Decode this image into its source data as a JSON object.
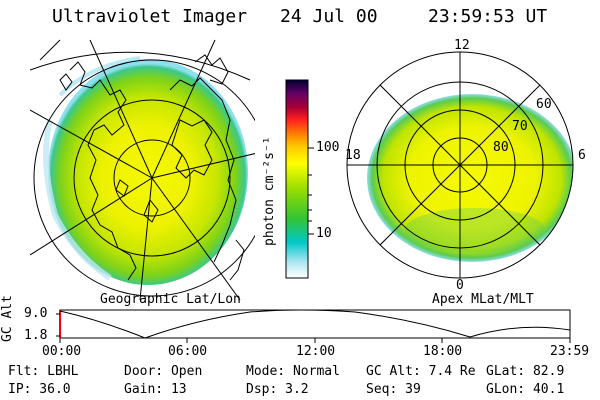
{
  "header": {
    "instrument": "Ultraviolet Imager",
    "date": "24 Jul 00",
    "time": "23:59:53 UT"
  },
  "colorbar": {
    "unit_label": "photon cm⁻²s⁻¹",
    "ticks": [
      "100",
      "10"
    ],
    "colors": [
      "#000033",
      "#330055",
      "#660066",
      "#aa0033",
      "#ff2020",
      "#ff8800",
      "#ffcc00",
      "#ffff00",
      "#ccee00",
      "#88dd00",
      "#33cc33",
      "#00cccc",
      "#88ddee",
      "#ffffff"
    ]
  },
  "left_map": {
    "caption": "Geographic Lat/Lon"
  },
  "right_map": {
    "caption": "Apex MLat/MLT",
    "mlt_labels": {
      "top": "12",
      "left": "18",
      "right": "6",
      "bottom": "0"
    },
    "lat_labels": [
      "60",
      "70",
      "80"
    ]
  },
  "altitude_plot": {
    "ylabel": "GC Alt",
    "yticks": [
      "9.0",
      "1.8"
    ],
    "xticks": [
      "00:00",
      "06:00",
      "12:00",
      "18:00",
      "23:59"
    ]
  },
  "footer": {
    "flt": "Flt: LBHL",
    "door": "Door: Open",
    "mode": "Mode: Normal",
    "gc_alt": "GC Alt: 7.4 Re",
    "glat": "GLat:  82.9",
    "ip": "IP: 36.0",
    "gain": "Gain: 13",
    "dsp": "Dsp:     3.2",
    "seq": "Seq: 39",
    "glon": "GLon:  40.1"
  }
}
